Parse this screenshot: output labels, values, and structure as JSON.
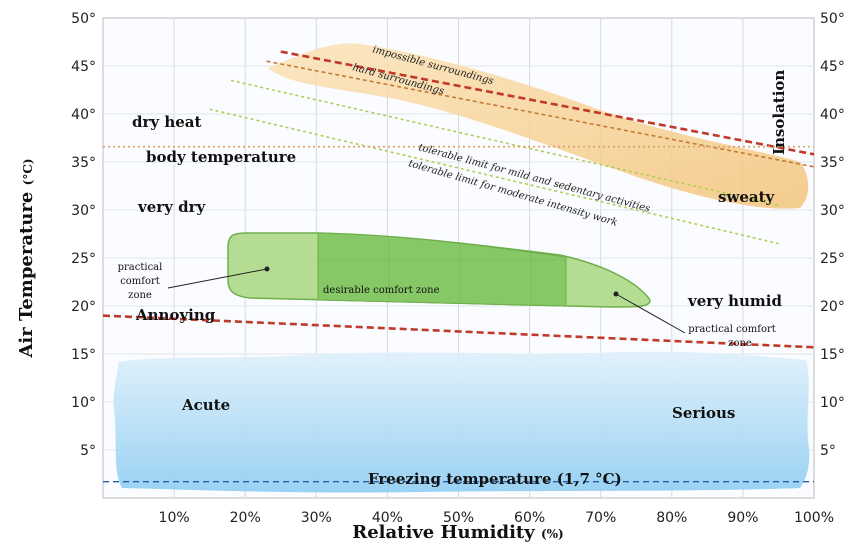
{
  "chart_data": {
    "type": "area",
    "title": "",
    "xlabel": "Relative Humidity",
    "xlabel_unit": "(%)",
    "ylabel": "Air Temperature",
    "ylabel_unit": "(°C)",
    "xlim": [
      0,
      100
    ],
    "ylim": [
      0,
      50
    ],
    "grid": true,
    "x_tick_labels": [
      "10%",
      "20%",
      "30%",
      "40%",
      "50%",
      "60%",
      "70%",
      "80%",
      "90%",
      "100%"
    ],
    "y_tick_labels": [
      "5°",
      "10°",
      "15°",
      "20°",
      "25°",
      "30°",
      "35°",
      "40°",
      "45°",
      "50°"
    ],
    "colors": {
      "heat_zone": "#f6c77a",
      "cold_zone": "#9fd2f3",
      "comfort_practical": "#a8d88a",
      "comfort_desirable": "#7cc35c",
      "red_dashed": "#c0392b",
      "green_dotted": "#b5cc54",
      "body_temp_line": "#d9a066",
      "freezing_line": "#2a5fa8"
    },
    "region_labels": {
      "dry_heat": "dry heat",
      "body_temperature": "body temperature",
      "very_dry": "very dry",
      "annoying": "Annoying",
      "acute": "Acute",
      "serious": "Serious",
      "very_humid": "very humid",
      "sweaty": "sweaty",
      "insolation": "Insolation",
      "desirable_comfort_zone": "desirable comfort zone",
      "practical_comfort_zone_left": [
        "practical",
        "comfort",
        "zone"
      ],
      "practical_comfort_zone_right": [
        "practical  comfort",
        "zone"
      ],
      "freezing_temperature": "Freezing temperature (1,7 °C)"
    },
    "series": [
      {
        "name": "impossible surroundings",
        "x": [
          25,
          100
        ],
        "y": [
          46.5,
          35.8
        ]
      },
      {
        "name": "hard surroundings",
        "x": [
          23,
          100
        ],
        "y": [
          45.5,
          34.5
        ]
      },
      {
        "name": "tolerable limit for mild and sedentary activities",
        "x": [
          18,
          95
        ],
        "y": [
          43.5,
          30.5
        ]
      },
      {
        "name": "tolerable limit for moderate intensity work",
        "x": [
          15,
          95
        ],
        "y": [
          40.5,
          26.5
        ]
      },
      {
        "name": "body temperature",
        "x": [
          0,
          100
        ],
        "y": [
          36.6,
          36.6
        ]
      },
      {
        "name": "Annoying",
        "x": [
          0,
          100
        ],
        "y": [
          19,
          15.7
        ]
      },
      {
        "name": "Freezing temperature (1,7 °C)",
        "x": [
          0,
          100
        ],
        "y": [
          1.7,
          1.7
        ]
      }
    ],
    "zones": [
      {
        "name": "desirable comfort zone",
        "x_range": [
          30,
          65
        ],
        "y_range": [
          20.6,
          27.8
        ]
      },
      {
        "name": "practical comfort zone",
        "x_range": [
          18,
          77
        ],
        "y_range": [
          20.6,
          27.8
        ]
      }
    ]
  }
}
